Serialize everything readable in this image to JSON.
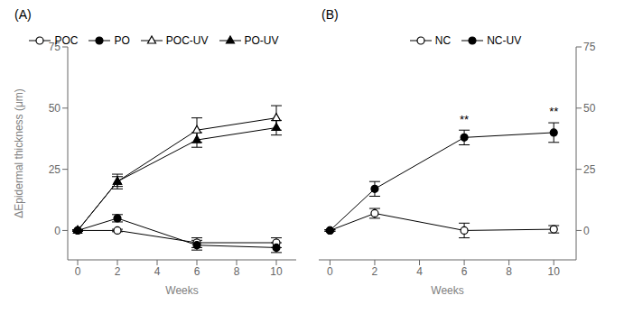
{
  "chart_data": [
    {
      "type": "line",
      "title": "(A)",
      "xlabel": "Weeks",
      "ylabel": "ΔEpidermal thickness (μm)",
      "x": [
        0,
        2,
        6,
        10
      ],
      "xlim": [
        -0.5,
        11
      ],
      "xticks": [
        0,
        2,
        4,
        6,
        8,
        10
      ],
      "ylim": [
        -12,
        75
      ],
      "yticks": [
        0,
        25,
        50,
        75
      ],
      "grid": false,
      "legend": "top",
      "series": [
        {
          "name": "POC",
          "color": "#000000",
          "marker": "circle_open",
          "values": [
            0,
            0,
            -5,
            -5
          ],
          "errors": [
            0.3,
            0.5,
            2,
            2
          ]
        },
        {
          "name": "PO",
          "color": "#000000",
          "marker": "circle",
          "values": [
            0,
            5,
            -6,
            -7
          ],
          "errors": [
            0.3,
            1.5,
            2,
            2
          ]
        },
        {
          "name": "POC-UV",
          "color": "#000000",
          "marker": "triangle_open",
          "values": [
            0,
            20,
            41,
            46
          ],
          "errors": [
            0.3,
            3,
            5,
            5
          ]
        },
        {
          "name": "PO-UV",
          "color": "#000000",
          "marker": "triangle",
          "values": [
            0,
            20,
            37,
            42
          ],
          "errors": [
            0.3,
            2,
            3,
            3
          ]
        }
      ]
    },
    {
      "type": "line",
      "title": "(B)",
      "xlabel": "Weeks",
      "x": [
        0,
        2,
        6,
        10
      ],
      "xlim": [
        -0.5,
        11
      ],
      "xticks": [
        0,
        2,
        4,
        6,
        8,
        10
      ],
      "y2lim": [
        -12,
        75
      ],
      "y2ticks": [
        0,
        25,
        50,
        75
      ],
      "grid": false,
      "legend": "top",
      "series": [
        {
          "name": "NC",
          "color": "#000000",
          "marker": "circle_open",
          "axis": "y2",
          "values": [
            0,
            7,
            0,
            0.5
          ],
          "errors": [
            0.3,
            2,
            3,
            1.5
          ]
        },
        {
          "name": "NC-UV",
          "color": "#000000",
          "marker": "circle",
          "axis": "y2",
          "values": [
            0,
            17,
            38,
            40
          ],
          "errors": [
            0.3,
            3,
            3,
            4
          ]
        }
      ],
      "annotations": [
        {
          "x": 6,
          "y": 42,
          "text": "**"
        },
        {
          "x": 10,
          "y": 45,
          "text": "**"
        }
      ]
    }
  ]
}
